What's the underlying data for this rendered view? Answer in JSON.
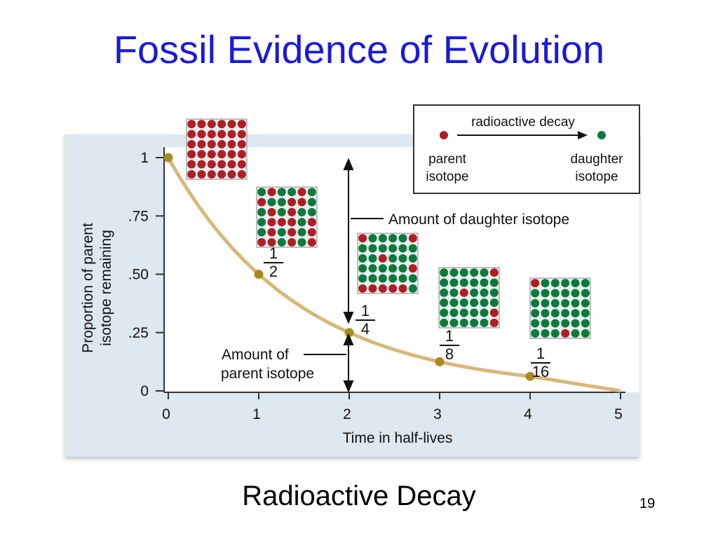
{
  "slide": {
    "title": "Fossil Evidence of Evolution",
    "caption": "Radioactive Decay",
    "page_number": "19"
  },
  "colors": {
    "title": "#1a1adb",
    "parent": "#b01e23",
    "daughter": "#0d7a3a",
    "curve": "#d7b878",
    "point": "#a98a1e",
    "panel": "#dde8f0"
  },
  "legend": {
    "process": "radioactive decay",
    "parent_line1": "parent",
    "parent_line2": "isotope",
    "daughter_line1": "daughter",
    "daughter_line2": "isotope"
  },
  "annotations": {
    "daughter_amount": "Amount of daughter isotope",
    "parent_amount_line1": "Amount of",
    "parent_amount_line2": "parent isotope"
  },
  "chart_data": {
    "type": "line",
    "title": "",
    "xlabel": "Time in half-lives",
    "ylabel_line1": "Proportion of parent",
    "ylabel_line2": "isotope remaining",
    "xlim": [
      0,
      5
    ],
    "ylim": [
      0,
      1
    ],
    "x_ticks": [
      "0",
      "1",
      "2",
      "3",
      "4",
      "5"
    ],
    "y_ticks": [
      {
        "value": 0,
        "label": "0"
      },
      {
        "value": 0.25,
        "label": ".25"
      },
      {
        "value": 0.5,
        "label": ".50"
      },
      {
        "value": 0.75,
        "label": ".75"
      },
      {
        "value": 1,
        "label": "1"
      }
    ],
    "points": [
      {
        "x": 0,
        "y": 1
      },
      {
        "x": 1,
        "y": 0.5
      },
      {
        "x": 2,
        "y": 0.25
      },
      {
        "x": 3,
        "y": 0.125
      },
      {
        "x": 4,
        "y": 0.0625
      }
    ],
    "curve_end": {
      "x": 5,
      "y": 0
    },
    "fractions": [
      {
        "x": 1,
        "numerator": "1",
        "denominator": "2"
      },
      {
        "x": 2,
        "numerator": "1",
        "denominator": "4"
      },
      {
        "x": 3,
        "numerator": "1",
        "denominator": "8"
      },
      {
        "x": 4,
        "numerator": "1",
        "denominator": "16"
      }
    ],
    "grids": [
      {
        "half_lives": 0,
        "parent_count": 36
      },
      {
        "half_lives": 1,
        "parent_count": 18
      },
      {
        "half_lives": 2,
        "parent_count": 9
      },
      {
        "half_lives": 3,
        "parent_count": 4
      },
      {
        "half_lives": 4,
        "parent_count": 2
      }
    ]
  }
}
